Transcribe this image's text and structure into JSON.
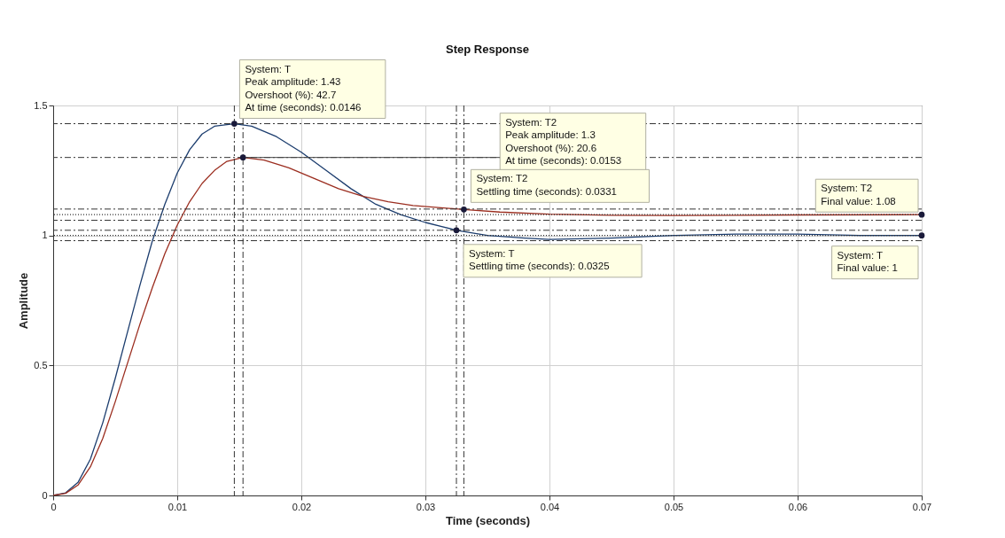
{
  "chart_data": {
    "type": "line",
    "title": "Step Response",
    "xlabel": "Time (seconds)",
    "ylabel": "Amplitude",
    "xlim": [
      0,
      0.07
    ],
    "xticks": [
      0,
      0.01,
      0.02,
      0.03,
      0.04,
      0.05,
      0.06,
      0.07
    ],
    "ylim": [
      0,
      1.5
    ],
    "yticks": [
      0,
      0.5,
      1,
      1.5
    ],
    "grid": true,
    "marker": "none",
    "line_style": "solid",
    "series": [
      {
        "color": "#1c3d6e",
        "x": [
          0,
          0.001,
          0.002,
          0.003,
          0.004,
          0.005,
          0.006,
          0.007,
          0.008,
          0.009,
          0.01,
          0.011,
          0.012,
          0.013,
          0.0146,
          0.016,
          0.018,
          0.02,
          0.022,
          0.024,
          0.026,
          0.028,
          0.03,
          0.0325,
          0.035,
          0.038,
          0.04,
          0.045,
          0.05,
          0.055,
          0.06,
          0.065,
          0.07
        ],
        "values": [
          0,
          0.01,
          0.05,
          0.14,
          0.28,
          0.45,
          0.63,
          0.81,
          0.98,
          1.12,
          1.24,
          1.33,
          1.39,
          1.42,
          1.43,
          1.42,
          1.38,
          1.32,
          1.25,
          1.18,
          1.12,
          1.08,
          1.05,
          1.02,
          1.0,
          0.99,
          0.985,
          0.99,
          1.0,
          1.005,
          1.005,
          1.0,
          1
        ]
      },
      {
        "color": "#9b2d1f",
        "x": [
          0,
          0.001,
          0.002,
          0.003,
          0.004,
          0.005,
          0.006,
          0.007,
          0.008,
          0.009,
          0.01,
          0.011,
          0.012,
          0.013,
          0.014,
          0.0153,
          0.017,
          0.019,
          0.021,
          0.023,
          0.025,
          0.027,
          0.029,
          0.0331,
          0.036,
          0.04,
          0.045,
          0.05,
          0.055,
          0.06,
          0.07
        ],
        "values": [
          0,
          0.008,
          0.04,
          0.11,
          0.22,
          0.36,
          0.51,
          0.66,
          0.8,
          0.93,
          1.04,
          1.13,
          1.2,
          1.25,
          1.285,
          1.3,
          1.29,
          1.26,
          1.22,
          1.18,
          1.15,
          1.13,
          1.115,
          1.1,
          1.09,
          1.082,
          1.078,
          1.077,
          1.078,
          1.079,
          1.08
        ]
      }
    ],
    "ref_lines": [
      {
        "axis": "x",
        "value": 0.0146,
        "line_style": "dashed"
      },
      {
        "axis": "x",
        "value": 0.0153,
        "line_style": "dashed"
      },
      {
        "axis": "x",
        "value": 0.0325,
        "line_style": "dashed"
      },
      {
        "axis": "x",
        "value": 0.0331,
        "line_style": "dashed"
      },
      {
        "axis": "y",
        "value": 1.43,
        "line_style": "dashed"
      },
      {
        "axis": "y",
        "value": 1.3,
        "line_style": "dashed"
      },
      {
        "axis": "y",
        "value": 1.1016,
        "line_style": "dashed"
      },
      {
        "axis": "y",
        "value": 1.0584,
        "line_style": "dashed"
      },
      {
        "axis": "y",
        "value": 1.02,
        "line_style": "dashed"
      },
      {
        "axis": "y",
        "value": 0.98,
        "line_style": "dashed"
      },
      {
        "axis": "y",
        "value": 1.08,
        "line_style": "dotted"
      },
      {
        "axis": "y",
        "value": 1,
        "line_style": "dotted"
      }
    ],
    "annotations": [
      {
        "text": "System: T\nPeak amplitude: 1.43\nOvershoot (%): 42.7\nAt time (seconds): 0.0146",
        "x": 0.0146,
        "y": 1.43
      },
      {
        "text": "System: T2\nPeak amplitude: 1.3\nOvershoot (%): 20.6\nAt time (seconds): 0.0153",
        "x": 0.0153,
        "y": 1.3
      },
      {
        "text": "System: T2\nSettling time (seconds): 0.0331",
        "x": 0.0331,
        "y": 1.1
      },
      {
        "text": "System: T\nSettling time (seconds): 0.0325",
        "x": 0.0325,
        "y": 1.02
      },
      {
        "text": "System: T2\nFinal value: 1.08",
        "x": 0.07,
        "y": 1.08
      },
      {
        "text": "System: T\nFinal value: 1",
        "x": 0.07,
        "y": 1
      }
    ]
  }
}
